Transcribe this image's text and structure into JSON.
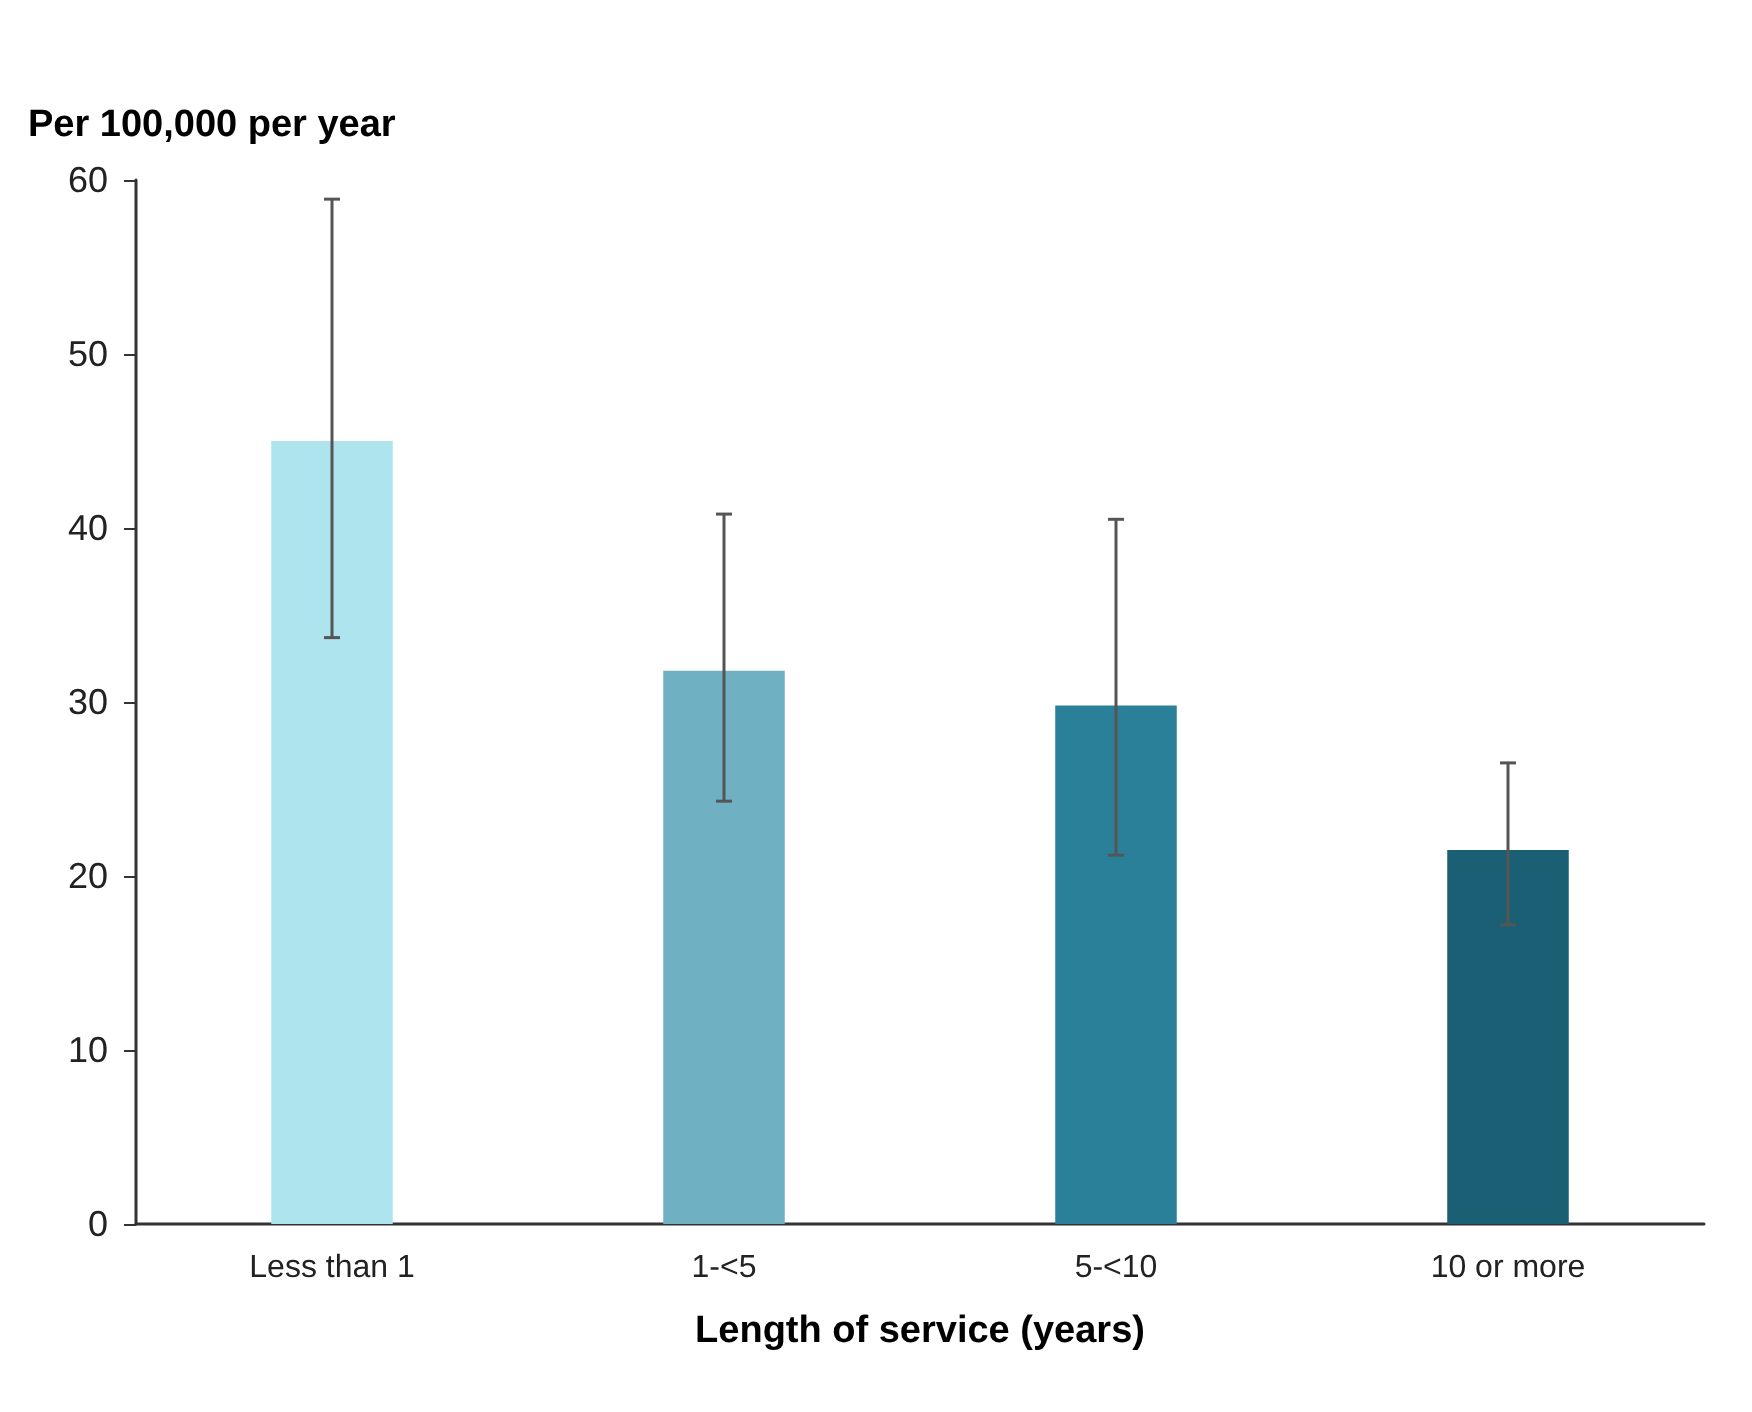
{
  "chart_data": {
    "type": "bar",
    "xlabel": "Length of service (years)",
    "ylabel": "Per 100,000 per year",
    "categories": [
      "Less than 1",
      "1-<5",
      "5-<10",
      "10 or more"
    ],
    "values": [
      45,
      31.8,
      29.8,
      21.5
    ],
    "colors": [
      "#aee4ee",
      "#6fb0c2",
      "#2a7f99",
      "#1a5f73"
    ],
    "errors": [
      [
        33.7,
        58.9
      ],
      [
        24.3,
        40.8
      ],
      [
        21.2,
        40.5
      ],
      [
        17.2,
        26.5
      ]
    ],
    "ylim": [
      0,
      60
    ],
    "yticks": [
      0,
      10,
      20,
      30,
      40,
      50,
      60
    ],
    "grid": false
  }
}
